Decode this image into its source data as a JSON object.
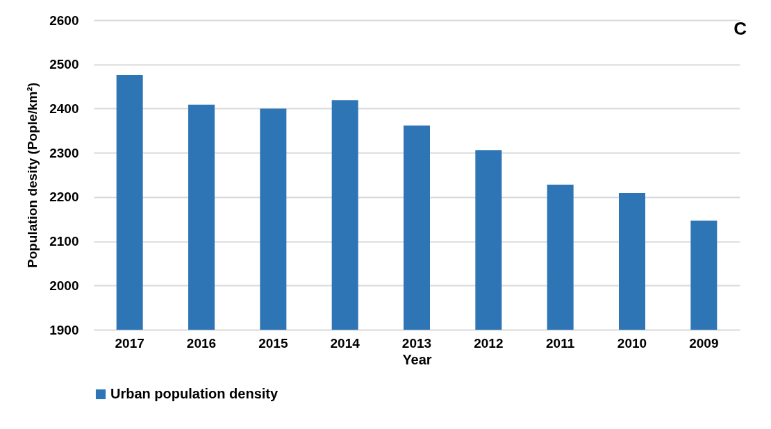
{
  "chart_data": {
    "type": "bar",
    "title": "C",
    "xlabel": "Year",
    "ylabel": "Population desity (Pople/km²)",
    "categories": [
      "2017",
      "2016",
      "2015",
      "2014",
      "2013",
      "2012",
      "2011",
      "2010",
      "2009"
    ],
    "series": [
      {
        "name": "Urban population density",
        "color": "#2e75b6",
        "values": [
          2476,
          2409,
          2400,
          2419,
          2362,
          2306,
          2228,
          2209,
          2147
        ]
      }
    ],
    "ylim": [
      1900,
      2600
    ],
    "yticks": [
      1900,
      2000,
      2100,
      2200,
      2300,
      2400,
      2500,
      2600
    ],
    "grid": "y",
    "legend": "bottom"
  }
}
